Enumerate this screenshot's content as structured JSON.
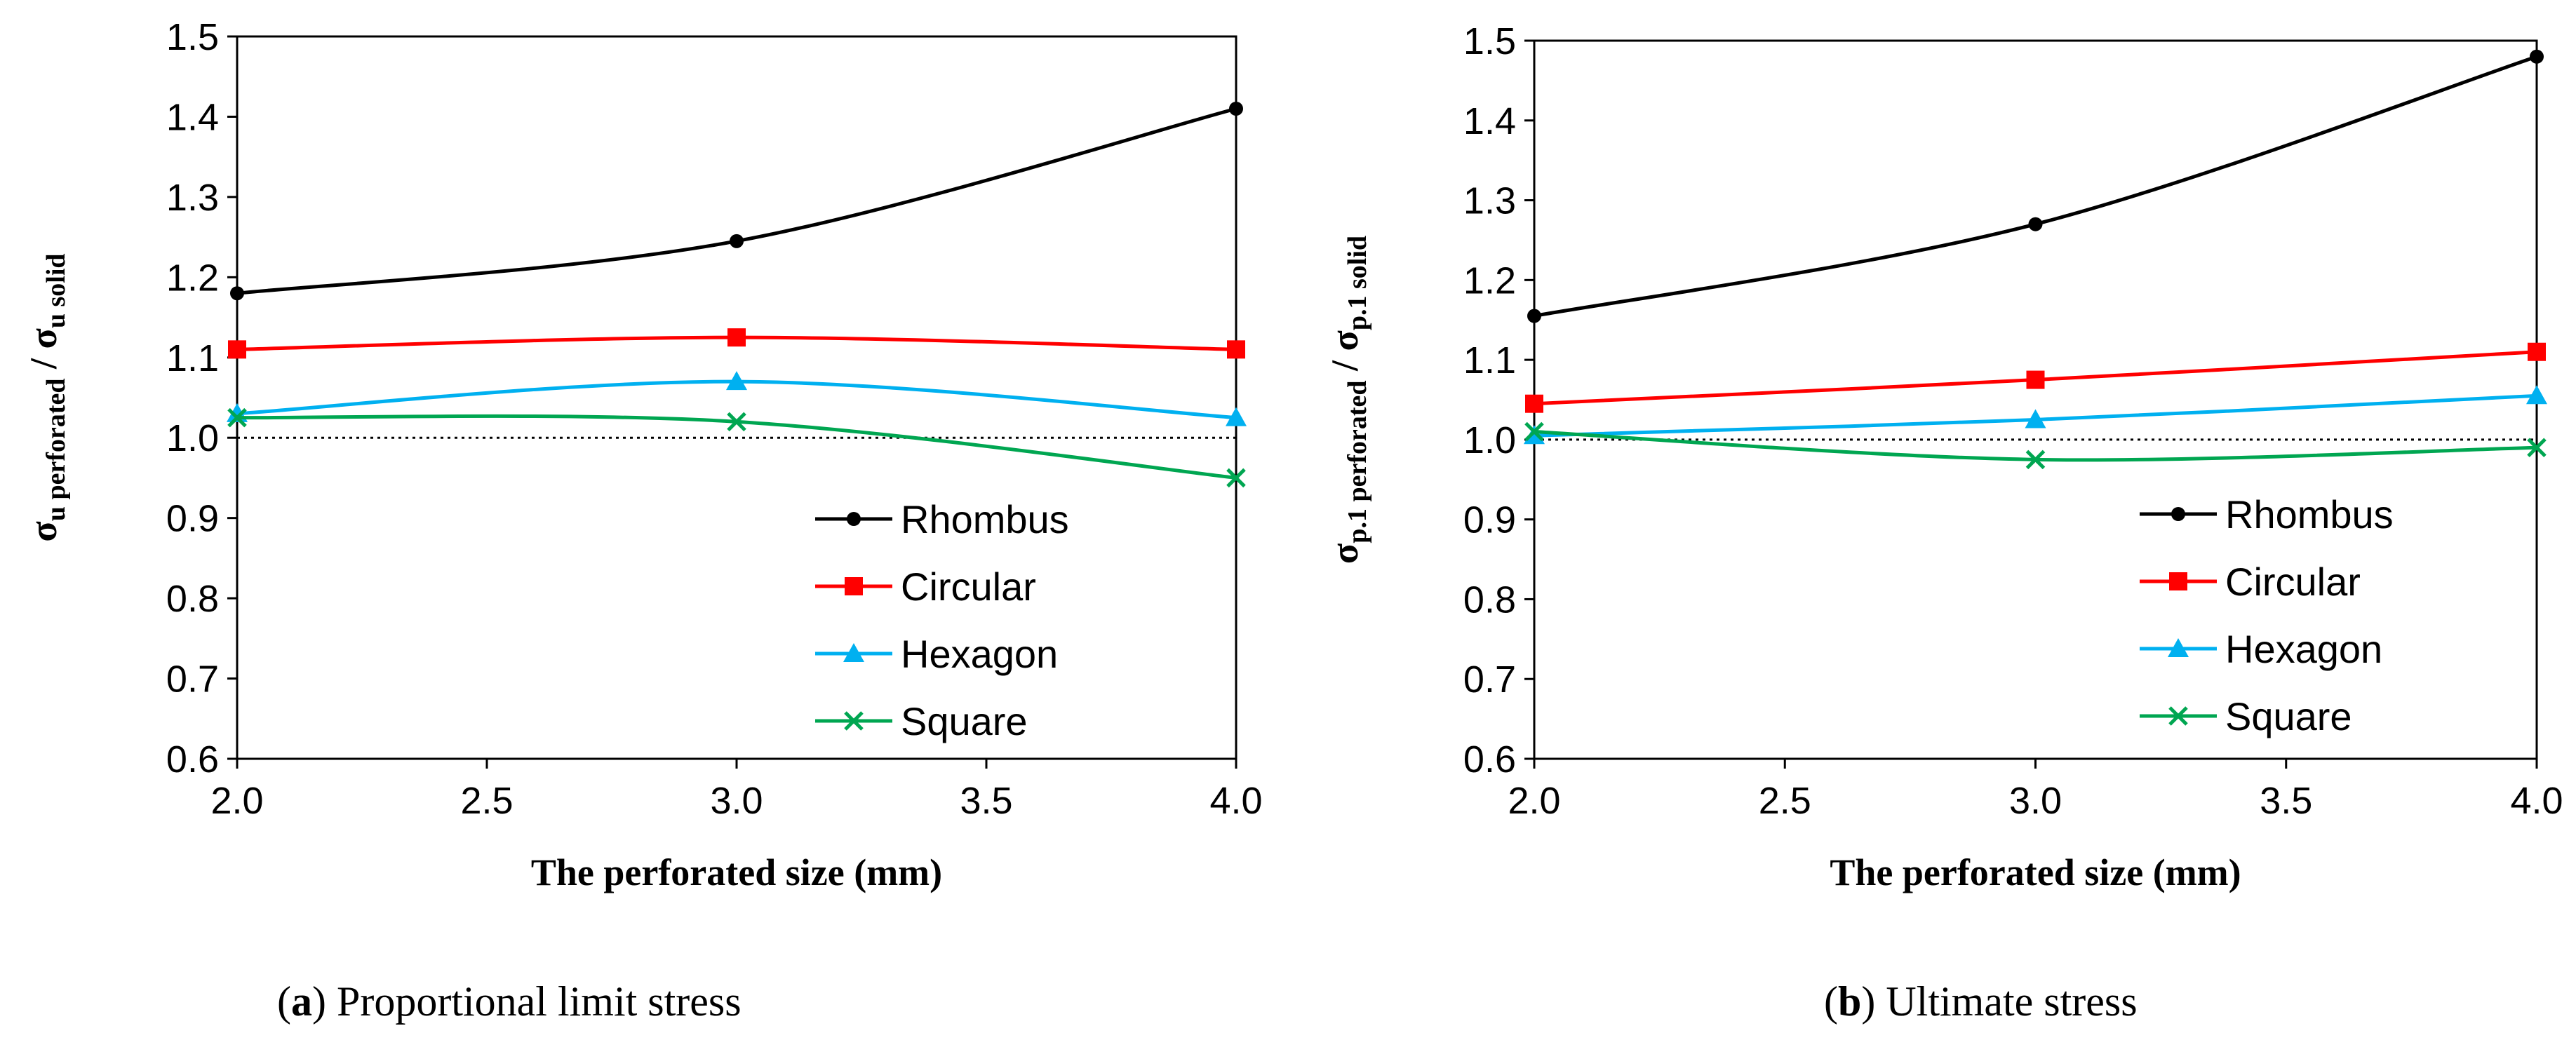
{
  "colors": {
    "Rhombus": "#000000",
    "Circular": "#ff0000",
    "Hexagon": "#00b0f0",
    "Square": "#00a651",
    "reference": "#000000"
  },
  "chart_data": [
    {
      "id": "a",
      "type": "line",
      "x": [
        2.0,
        3.0,
        4.0
      ],
      "x_ticks": [
        "2.0",
        "2.5",
        "3.0",
        "3.5",
        "4.0"
      ],
      "x_tick_values": [
        2.0,
        2.5,
        3.0,
        3.5,
        4.0
      ],
      "y_ticks": [
        "0.6",
        "0.7",
        "0.8",
        "0.9",
        "1.0",
        "1.1",
        "1.2",
        "1.3",
        "1.4",
        "1.5"
      ],
      "y_tick_values": [
        0.6,
        0.7,
        0.8,
        0.9,
        1.0,
        1.1,
        1.2,
        1.3,
        1.4,
        1.5
      ],
      "xlim": [
        2.0,
        4.0
      ],
      "ylim": [
        0.6,
        1.5
      ],
      "xlabel": "The perforated size   (mm)",
      "ylabel": {
        "num": "σ",
        "num_sub": "u perforated",
        "sep": " / ",
        "den": "σ",
        "den_sub": "u solid"
      },
      "reference_y": 1.0,
      "legend_position": "bottom-right",
      "series": [
        {
          "name": "Rhombus",
          "marker": "circle",
          "values": [
            1.18,
            1.245,
            1.41
          ]
        },
        {
          "name": "Circular",
          "marker": "square",
          "values": [
            1.11,
            1.125,
            1.11
          ]
        },
        {
          "name": "Hexagon",
          "marker": "triangle",
          "values": [
            1.03,
            1.07,
            1.025
          ]
        },
        {
          "name": "Square",
          "marker": "x",
          "values": [
            1.025,
            1.02,
            0.95
          ]
        }
      ],
      "caption_label": "a",
      "caption_text": "Proportional limit stress"
    },
    {
      "id": "b",
      "type": "line",
      "x": [
        2.0,
        3.0,
        4.0
      ],
      "x_ticks": [
        "2.0",
        "2.5",
        "3.0",
        "3.5",
        "4.0"
      ],
      "x_tick_values": [
        2.0,
        2.5,
        3.0,
        3.5,
        4.0
      ],
      "y_ticks": [
        "0.6",
        "0.7",
        "0.8",
        "0.9",
        "1.0",
        "1.1",
        "1.2",
        "1.3",
        "1.4",
        "1.5"
      ],
      "y_tick_values": [
        0.6,
        0.7,
        0.8,
        0.9,
        1.0,
        1.1,
        1.2,
        1.3,
        1.4,
        1.5
      ],
      "xlim": [
        2.0,
        4.0
      ],
      "ylim": [
        0.6,
        1.5
      ],
      "xlabel": "The perforated size   (mm)",
      "ylabel": {
        "num": "σ",
        "num_sub": "p.1 perforated",
        "sep": " / ",
        "den": "σ",
        "den_sub": "p.1 solid"
      },
      "reference_y": 1.0,
      "legend_position": "bottom-right",
      "series": [
        {
          "name": "Rhombus",
          "marker": "circle",
          "values": [
            1.155,
            1.27,
            1.48
          ]
        },
        {
          "name": "Circular",
          "marker": "square",
          "values": [
            1.045,
            1.075,
            1.11
          ]
        },
        {
          "name": "Hexagon",
          "marker": "triangle",
          "values": [
            1.005,
            1.025,
            1.055
          ]
        },
        {
          "name": "Square",
          "marker": "x",
          "values": [
            1.01,
            0.975,
            0.99
          ]
        }
      ],
      "caption_label": "b",
      "caption_text": "Ultimate stress"
    }
  ]
}
